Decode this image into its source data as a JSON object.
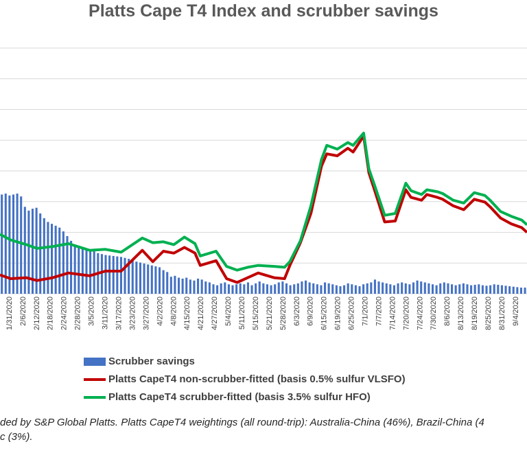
{
  "chart_data": {
    "type": "bar+line",
    "title": "Platts Cape T4 Index and scrubber savings",
    "xlabel": "",
    "ylabel": "",
    "y_range": [
      0,
      26000
    ],
    "grid": true,
    "legend_position": "bottom",
    "tick_labels": [
      "1/31/2020",
      "2/6/2020",
      "2/12/2020",
      "2/18/2020",
      "2/24/2020",
      "2/28/2020",
      "3/5/2020",
      "3/11/2020",
      "3/17/2020",
      "3/23/2020",
      "3/27/2020",
      "4/2/2020",
      "4/8/2020",
      "4/15/2020",
      "4/21/2020",
      "4/27/2020",
      "5/4/2020",
      "5/11/2020",
      "5/15/2020",
      "5/21/2020",
      "5/28/2020",
      "6/3/2020",
      "6/9/2020",
      "6/15/2020",
      "6/19/2020",
      "6/25/2020",
      "7/1/2020",
      "7/7/2020",
      "7/14/2020",
      "7/20/2020",
      "7/24/2020",
      "7/30/2020",
      "8/6/2020",
      "8/13/2020",
      "8/19/2020",
      "8/25/2020",
      "8/31/2020",
      "9/4/2020"
    ],
    "series": [
      {
        "name": "Scrubber savings",
        "kind": "bar",
        "color": "#4472C4",
        "values": [
          10500,
          10600,
          10400,
          10500,
          10600,
          10300,
          9200,
          8800,
          9000,
          9100,
          8500,
          8000,
          7600,
          7400,
          7200,
          7000,
          6600,
          6100,
          5600,
          5000,
          4900,
          4800,
          4700,
          4600,
          4500,
          4300,
          4200,
          4100,
          4050,
          4000,
          3950,
          3900,
          3800,
          3700,
          3600,
          3400,
          3300,
          3200,
          3100,
          3000,
          2900,
          2800,
          2500,
          2300,
          1800,
          1900,
          1700,
          1600,
          1700,
          1500,
          1400,
          1600,
          1500,
          1300,
          1200,
          1000,
          900,
          1100,
          1200,
          1000,
          900,
          1000,
          1100,
          1000,
          1200,
          900,
          1100,
          1300,
          1100,
          1000,
          900,
          1000,
          1200,
          1300,
          1100,
          900,
          1000,
          1100,
          1300,
          1400,
          1200,
          1100,
          1000,
          900,
          1200,
          1100,
          1000,
          900,
          800,
          900,
          1100,
          1000,
          900,
          800,
          1000,
          1100,
          1200,
          1500,
          1300,
          1200,
          1100,
          1000,
          900,
          1100,
          1200,
          1100,
          1000,
          1200,
          1400,
          1300,
          1200,
          1100,
          1000,
          900,
          1100,
          1200,
          1100,
          1000,
          900,
          1000,
          1100,
          1000,
          900,
          950,
          1000,
          900,
          850,
          900,
          1000,
          950,
          900,
          850,
          800,
          750,
          700,
          650,
          650
        ]
      },
      {
        "name": "Platts CapeT4 non-scrubber-fitted (basis 0.5% sulfur VLSFO)",
        "kind": "line",
        "color": "#C00000",
        "x": [
          0,
          0.02,
          0.05,
          0.07,
          0.1,
          0.13,
          0.17,
          0.2,
          0.23,
          0.27,
          0.29,
          0.31,
          0.33,
          0.35,
          0.37,
          0.38,
          0.41,
          0.43,
          0.45,
          0.47,
          0.49,
          0.52,
          0.54,
          0.55,
          0.57,
          0.59,
          0.61,
          0.62,
          0.64,
          0.66,
          0.67,
          0.69,
          0.7,
          0.71,
          0.73,
          0.75,
          0.77,
          0.78,
          0.8,
          0.81,
          0.83,
          0.84,
          0.86,
          0.88,
          0.9,
          0.92,
          0.93,
          0.95,
          0.97,
          0.99,
          1
        ],
        "values": [
          2000,
          1600,
          1700,
          1400,
          1700,
          2200,
          1900,
          2400,
          2400,
          4600,
          3400,
          4500,
          4300,
          4900,
          4300,
          3000,
          3500,
          1600,
          1200,
          1700,
          2200,
          1700,
          1600,
          3000,
          5400,
          8500,
          13500,
          14800,
          14600,
          15400,
          15000,
          16700,
          12800,
          11100,
          7600,
          7700,
          11000,
          10200,
          9900,
          10500,
          10200,
          10000,
          9300,
          8900,
          10000,
          9700,
          9200,
          8000,
          7400,
          7000,
          6500
        ]
      },
      {
        "name": "Platts CapeT4 scrubber-fitted (basis 3.5% sulfur HFO)",
        "kind": "line",
        "color": "#00B050",
        "x": [
          0,
          0.02,
          0.05,
          0.07,
          0.1,
          0.13,
          0.17,
          0.2,
          0.23,
          0.27,
          0.29,
          0.31,
          0.33,
          0.35,
          0.37,
          0.38,
          0.41,
          0.43,
          0.45,
          0.47,
          0.49,
          0.52,
          0.54,
          0.55,
          0.57,
          0.59,
          0.61,
          0.62,
          0.64,
          0.66,
          0.67,
          0.69,
          0.7,
          0.71,
          0.73,
          0.75,
          0.77,
          0.78,
          0.8,
          0.81,
          0.83,
          0.84,
          0.86,
          0.88,
          0.9,
          0.92,
          0.93,
          0.95,
          0.97,
          0.99,
          1
        ],
        "values": [
          6300,
          5700,
          5200,
          4800,
          5000,
          5300,
          4600,
          4700,
          4400,
          5900,
          5400,
          5500,
          5200,
          6000,
          5300,
          4000,
          4500,
          2900,
          2500,
          2800,
          3000,
          2900,
          2800,
          3400,
          5600,
          9300,
          14200,
          15700,
          15300,
          16000,
          15700,
          17000,
          13200,
          11600,
          8300,
          8500,
          11700,
          10900,
          10500,
          11000,
          10800,
          10600,
          9900,
          9600,
          10700,
          10400,
          9900,
          8700,
          8200,
          7800,
          7300
        ]
      }
    ]
  },
  "legend": {
    "bar_label": "Scrubber savings",
    "red_label": "Platts CapeT4 non-scrubber-fitted (basis 0.5% sulfur VLSFO)",
    "green_label": "Platts CapeT4 scrubber-fitted (basis 3.5% sulfur HFO)"
  },
  "footnote": {
    "line1": "ded by S&P Global Platts. Platts CapeT4 weightings (all round-trip): Australia-China (46%), Brazil-China (4",
    "line2": "c (3%)."
  }
}
